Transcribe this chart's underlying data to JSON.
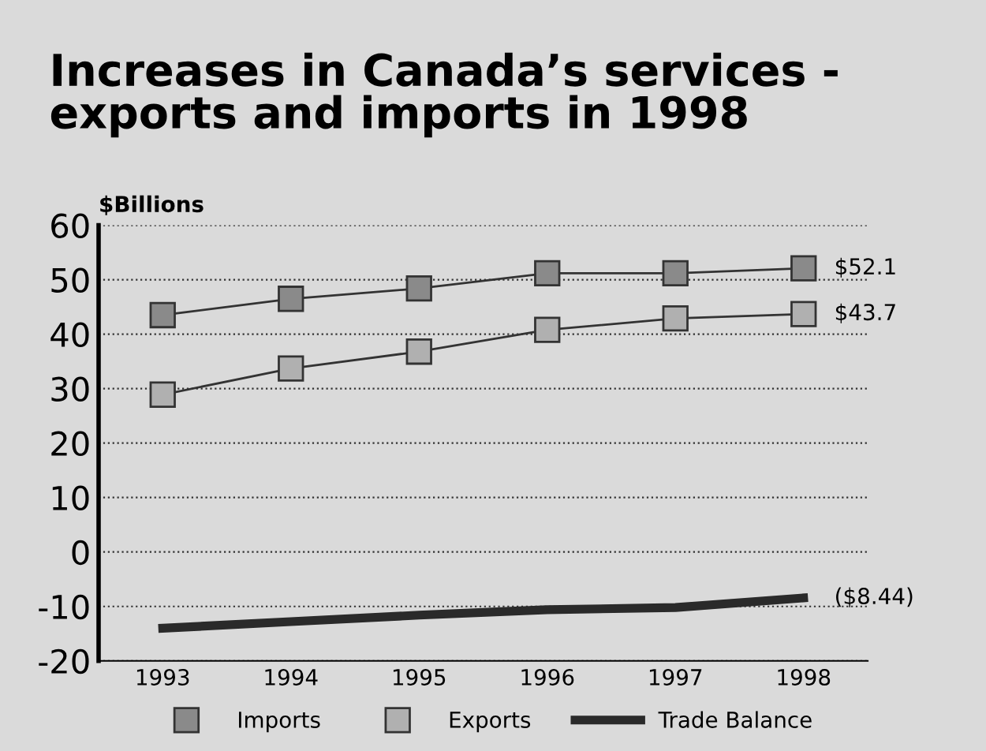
{
  "chart_data": {
    "type": "line",
    "title": "Increases in Canada’s services -\nexports and imports in 1998",
    "ylabel": "$Billions",
    "categories": [
      "1993",
      "1994",
      "1995",
      "1996",
      "1997",
      "1998"
    ],
    "series": [
      {
        "name": "Imports",
        "color": "#8a8a8a",
        "marker": "square",
        "values": [
          43.5,
          46.5,
          48.4,
          51.2,
          51.2,
          52.1
        ]
      },
      {
        "name": "Exports",
        "color": "#b0b0b0",
        "marker": "square",
        "values": [
          28.9,
          33.7,
          36.8,
          40.8,
          42.9,
          43.7
        ]
      },
      {
        "name": "Trade Balance",
        "color": "#2a2a2a",
        "marker": "none",
        "values": [
          -14,
          -12.8,
          -11.6,
          -10.6,
          -10.2,
          -8.44
        ]
      }
    ],
    "annotations": [
      {
        "text": "$52.1",
        "x": "1998",
        "y": 52.1
      },
      {
        "text": "$43.7",
        "x": "1998",
        "y": 43.7
      },
      {
        "text": "($8.44)",
        "x": "1998",
        "y": -8.44
      }
    ],
    "ylim": [
      -20,
      60
    ],
    "yticks": [
      -20,
      -10,
      0,
      10,
      20,
      30,
      40,
      50,
      60
    ],
    "grid": "y",
    "legend": "bottom",
    "line_style": "solid"
  }
}
